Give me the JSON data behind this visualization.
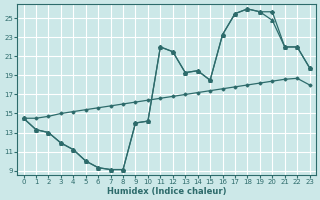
{
  "xlabel": "Humidex (Indice chaleur)",
  "background_color": "#cce8e8",
  "line_color": "#2d6b6b",
  "grid_color": "#ffffff",
  "xlim": [
    -0.5,
    23.5
  ],
  "ylim": [
    8.5,
    26.5
  ],
  "xticks": [
    0,
    1,
    2,
    3,
    4,
    5,
    6,
    7,
    8,
    9,
    10,
    11,
    12,
    13,
    14,
    15,
    16,
    17,
    18,
    19,
    20,
    21,
    22,
    23
  ],
  "yticks": [
    9,
    11,
    13,
    15,
    17,
    19,
    21,
    23,
    25
  ],
  "line1_x": [
    0,
    1,
    2,
    3,
    4,
    5,
    6,
    7,
    8,
    9,
    10,
    11,
    12,
    13,
    14,
    15,
    16,
    17,
    18,
    19,
    20,
    21,
    22,
    23
  ],
  "line1_y": [
    14.5,
    13.3,
    13.0,
    11.9,
    11.2,
    10.0,
    9.3,
    9.1,
    9.1,
    14.0,
    14.2,
    22.0,
    21.5,
    19.3,
    19.5,
    18.5,
    23.3,
    25.5,
    26.0,
    25.7,
    25.7,
    22.0,
    22.0,
    19.8
  ],
  "line2_x": [
    0,
    1,
    2,
    3,
    4,
    5,
    6,
    7,
    8,
    9,
    10,
    11,
    12,
    13,
    14,
    15,
    16,
    17,
    18,
    19,
    20,
    21,
    22,
    23
  ],
  "line2_y": [
    14.5,
    13.3,
    13.0,
    11.9,
    11.2,
    10.0,
    9.3,
    9.1,
    9.1,
    14.0,
    14.2,
    22.0,
    21.5,
    19.3,
    19.5,
    18.5,
    23.3,
    25.5,
    26.0,
    25.7,
    24.8,
    22.0,
    22.0,
    19.8
  ],
  "line3_x": [
    0,
    1,
    2,
    3,
    4,
    5,
    6,
    7,
    8,
    9,
    10,
    11,
    12,
    13,
    14,
    15,
    16,
    17,
    18,
    19,
    20,
    21,
    22,
    23
  ],
  "line3_y": [
    14.5,
    14.5,
    14.7,
    15.0,
    15.2,
    15.4,
    15.6,
    15.8,
    16.0,
    16.2,
    16.4,
    16.6,
    16.8,
    17.0,
    17.2,
    17.4,
    17.6,
    17.8,
    18.0,
    18.2,
    18.4,
    18.6,
    18.7,
    18.0
  ]
}
